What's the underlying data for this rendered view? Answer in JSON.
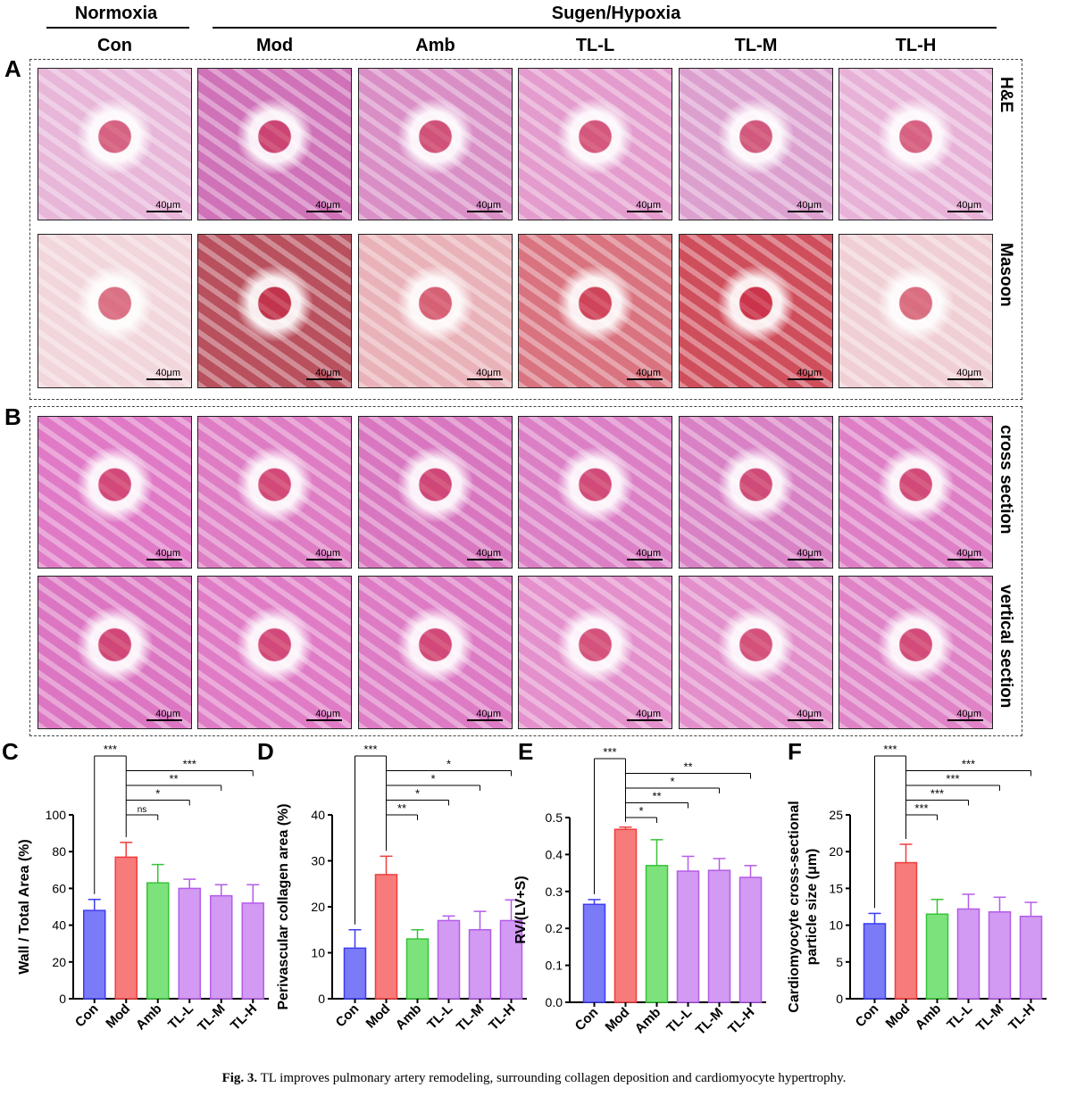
{
  "header": {
    "group_normoxia": "Normoxia",
    "group_sugen": "Sugen/Hypoxia",
    "columns": [
      "Con",
      "Mod",
      "Amb",
      "TL-L",
      "TL-M",
      "TL-H"
    ]
  },
  "panel_a": {
    "letter": "A",
    "rows": [
      {
        "label": "H&E",
        "scale": "40μm",
        "colors": [
          "#e7b6d9",
          "#cf72b8",
          "#d98fc6",
          "#e39ccd",
          "#dca0cf",
          "#e8b2d8"
        ]
      },
      {
        "label": "Masoon",
        "scale": "40μm",
        "colors": [
          "#f1d6db",
          "#b8505e",
          "#e9b2b9",
          "#d9737f",
          "#cf4e5c",
          "#f0cfd4"
        ]
      }
    ]
  },
  "panel_b": {
    "letter": "B",
    "rows": [
      {
        "label": "cross section",
        "scale": "40μm",
        "colors": [
          "#e07ac6",
          "#de7dc4",
          "#d877c0",
          "#dc80c6",
          "#d881c4",
          "#de7fc6"
        ]
      },
      {
        "label": "vertical section",
        "scale": "40μm",
        "colors": [
          "#dc76c2",
          "#e07cc6",
          "#dd7bc4",
          "#e490cc",
          "#e28fcb",
          "#df82c6"
        ]
      }
    ]
  },
  "chart_data": [
    {
      "letter": "C",
      "type": "bar",
      "categories": [
        "Con",
        "Mod",
        "Amb",
        "TL-L",
        "TL-M",
        "TL-H"
      ],
      "values": [
        48,
        77,
        63,
        60,
        56,
        52
      ],
      "errors": [
        6,
        8,
        10,
        5,
        6,
        10
      ],
      "ylabel": "Wall / Total Area (%)",
      "ylim": [
        0,
        100
      ],
      "yticks": [
        0,
        20,
        40,
        60,
        80,
        100
      ],
      "significance": [
        {
          "from": 0,
          "to": 1,
          "label": "***"
        },
        {
          "from": 1,
          "to": 5,
          "label": "***"
        },
        {
          "from": 1,
          "to": 4,
          "label": "**"
        },
        {
          "from": 1,
          "to": 3,
          "label": "*"
        },
        {
          "from": 1,
          "to": 2,
          "label": "ns"
        }
      ]
    },
    {
      "letter": "D",
      "type": "bar",
      "categories": [
        "Con",
        "Mod",
        "Amb",
        "TL-L",
        "TL-M",
        "TL-H"
      ],
      "values": [
        11,
        27,
        13,
        17,
        15,
        17
      ],
      "errors": [
        4,
        4,
        2,
        1,
        4,
        4.5
      ],
      "ylabel": "Perivascular collagen area (%)",
      "ylim": [
        0,
        40
      ],
      "yticks": [
        0,
        10,
        20,
        30,
        40
      ],
      "significance": [
        {
          "from": 0,
          "to": 1,
          "label": "***"
        },
        {
          "from": 1,
          "to": 5,
          "label": "*"
        },
        {
          "from": 1,
          "to": 4,
          "label": "*"
        },
        {
          "from": 1,
          "to": 3,
          "label": "*"
        },
        {
          "from": 1,
          "to": 2,
          "label": "**"
        }
      ]
    },
    {
      "letter": "E",
      "type": "bar",
      "categories": [
        "Con",
        "Mod",
        "Amb",
        "TL-L",
        "TL-M",
        "TL-H"
      ],
      "values": [
        0.265,
        0.468,
        0.37,
        0.355,
        0.357,
        0.338
      ],
      "errors": [
        0.013,
        0.006,
        0.07,
        0.04,
        0.032,
        0.032
      ],
      "ylabel": "RV/(LV+S)",
      "ylim": [
        0,
        0.5
      ],
      "yticks": [
        "0.0",
        "0.1",
        "0.2",
        "0.3",
        "0.4",
        "0.5"
      ],
      "significance": [
        {
          "from": 0,
          "to": 1,
          "label": "***"
        },
        {
          "from": 1,
          "to": 5,
          "label": "**"
        },
        {
          "from": 1,
          "to": 4,
          "label": "*"
        },
        {
          "from": 1,
          "to": 3,
          "label": "**"
        },
        {
          "from": 1,
          "to": 2,
          "label": "*"
        }
      ]
    },
    {
      "letter": "F",
      "type": "bar",
      "categories": [
        "Con",
        "Mod",
        "Amb",
        "TL-L",
        "TL-M",
        "TL-H"
      ],
      "values": [
        10.2,
        18.5,
        11.5,
        12.2,
        11.8,
        11.2
      ],
      "errors": [
        1.4,
        2.5,
        2.0,
        2.0,
        2.0,
        1.9
      ],
      "ylabel": "Cardiomyocyte cross-sectional particle size (μm)",
      "ylabel_lines": [
        "Cardiomyocyte cross-sectional",
        "particle size (μm)"
      ],
      "ylim": [
        0,
        25
      ],
      "yticks": [
        0,
        5,
        10,
        15,
        20,
        25
      ],
      "significance": [
        {
          "from": 0,
          "to": 1,
          "label": "***"
        },
        {
          "from": 1,
          "to": 5,
          "label": "***"
        },
        {
          "from": 1,
          "to": 4,
          "label": "***"
        },
        {
          "from": 1,
          "to": 3,
          "label": "***"
        },
        {
          "from": 1,
          "to": 2,
          "label": "***"
        }
      ]
    }
  ],
  "bar_colors": {
    "fill": [
      "#7b7bf7",
      "#f77b7b",
      "#7ce27c",
      "#d29af2",
      "#d29af2",
      "#d29af2"
    ],
    "stroke": [
      "#3d3df0",
      "#f03d3d",
      "#37c337",
      "#b55ce8",
      "#b55ce8",
      "#b55ce8"
    ]
  },
  "caption": {
    "label": "Fig. 3.",
    "text": "TL improves pulmonary artery remodeling, surrounding collagen deposition and cardiomyocyte hypertrophy."
  }
}
